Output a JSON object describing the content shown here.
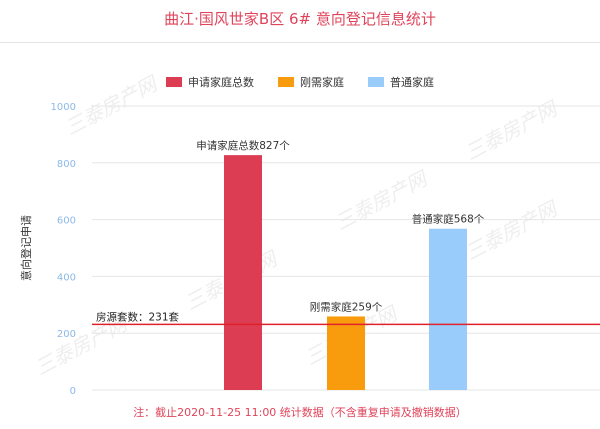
{
  "colors": {
    "title": "#e0445a",
    "note": "#e0445a",
    "refline": "#e0202a",
    "axis_tick": "#8db8e8",
    "grid": "#e6e6e6"
  },
  "watermark_text": "三泰房产网",
  "chart_data": {
    "type": "bar",
    "title": "曲江·国风世家B区 6# 意向登记信息统计",
    "ylabel": "意向登记申请",
    "ylim": [
      0,
      1000
    ],
    "yticks": [
      0,
      200,
      400,
      600,
      800,
      1000
    ],
    "grid": true,
    "legend_position": "top",
    "series": [
      {
        "name": "申请家庭总数",
        "value": 827,
        "label": "申请家庭总数827个",
        "color": "#dc3d52"
      },
      {
        "name": "刚需家庭",
        "value": 259,
        "label": "刚需家庭259个",
        "color": "#f89c0e"
      },
      {
        "name": "普通家庭",
        "value": 568,
        "label": "普通家庭568个",
        "color": "#99ccfa"
      }
    ],
    "reference_line": {
      "value": 231,
      "label": "房源套数：231套"
    },
    "note": "注：截止2020-11-25 11:00 统计数据（不含重复申请及撤销数据）"
  }
}
